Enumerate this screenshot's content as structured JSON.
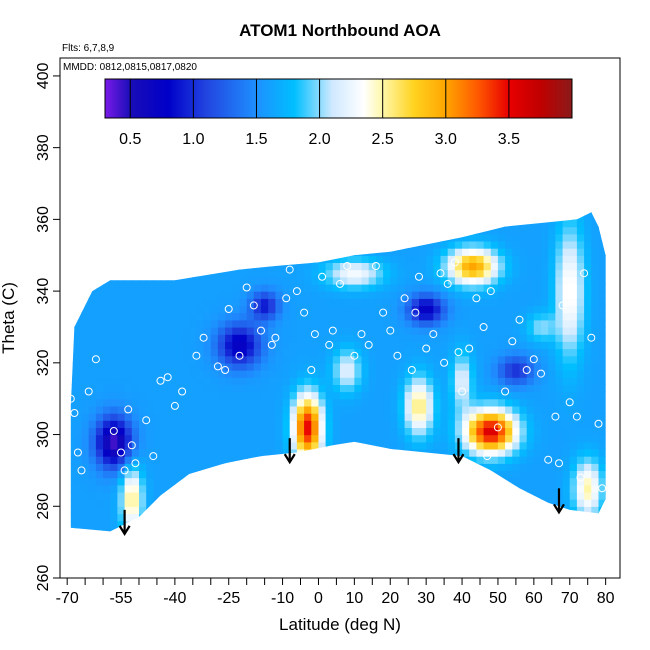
{
  "chart_data": {
    "type": "heatmap",
    "title": "ATOM1 Northbound AOA",
    "annotations": {
      "flights": "Flts: 6,7,8,9",
      "dates": "MMDD: 0812,0815,0817,0820"
    },
    "xlabel": "Latitude (deg N)",
    "ylabel": "Theta (C)",
    "xlim": [
      -72,
      84
    ],
    "ylim": [
      260,
      405
    ],
    "x_ticks": [
      -70,
      -55,
      -40,
      -25,
      -10,
      0,
      10,
      20,
      30,
      40,
      50,
      60,
      70,
      80
    ],
    "x_minor_ticks": [
      -65,
      -60,
      -50,
      -45,
      -35,
      -30,
      -20,
      -15,
      -5,
      5,
      15,
      25,
      35,
      45,
      55,
      65,
      75
    ],
    "y_ticks": [
      260,
      280,
      300,
      320,
      340,
      360,
      380,
      400
    ],
    "grid": false,
    "colorbar": {
      "placement": "top-inside",
      "range": [
        0.3,
        4.0
      ],
      "ticks": [
        0.5,
        1.0,
        1.5,
        2.0,
        2.5,
        3.0,
        3.5
      ],
      "stops": [
        {
          "v": 0.3,
          "c": "#7a1be8"
        },
        {
          "v": 0.5,
          "c": "#1a0db8"
        },
        {
          "v": 0.8,
          "c": "#0000c8"
        },
        {
          "v": 1.1,
          "c": "#2244e0"
        },
        {
          "v": 1.5,
          "c": "#1e90ff"
        },
        {
          "v": 1.8,
          "c": "#00bfff"
        },
        {
          "v": 2.1,
          "c": "#cfe9ff"
        },
        {
          "v": 2.35,
          "c": "#ffffff"
        },
        {
          "v": 2.5,
          "c": "#fff7a8"
        },
        {
          "v": 2.75,
          "c": "#ffd21f"
        },
        {
          "v": 3.0,
          "c": "#ffa500"
        },
        {
          "v": 3.25,
          "c": "#ff5a00"
        },
        {
          "v": 3.5,
          "c": "#e80000"
        },
        {
          "v": 3.75,
          "c": "#c00000"
        },
        {
          "v": 4.0,
          "c": "#8b1a1a"
        }
      ]
    },
    "field": {
      "base": 1.6,
      "features": [
        {
          "lat": -57,
          "th": 298,
          "rx": 5,
          "ry": 7,
          "amp": -1.2
        },
        {
          "lat": -52,
          "th": 282,
          "rx": 3,
          "ry": 9,
          "amp": 1.0
        },
        {
          "lat": -22,
          "th": 325,
          "rx": 6,
          "ry": 6,
          "amp": -0.9
        },
        {
          "lat": -15,
          "th": 336,
          "rx": 4,
          "ry": 4,
          "amp": -0.7
        },
        {
          "lat": -3,
          "th": 302,
          "rx": 4,
          "ry": 9,
          "amp": 1.9
        },
        {
          "lat": 10,
          "th": 345,
          "rx": 8,
          "ry": 4,
          "amp": 0.7
        },
        {
          "lat": 8,
          "th": 318,
          "rx": 4,
          "ry": 6,
          "amp": 0.6
        },
        {
          "lat": 28,
          "th": 308,
          "rx": 4,
          "ry": 8,
          "amp": 1.0
        },
        {
          "lat": 30,
          "th": 335,
          "rx": 5,
          "ry": 4,
          "amp": -0.9
        },
        {
          "lat": 43,
          "th": 347,
          "rx": 7,
          "ry": 5,
          "amp": 1.4
        },
        {
          "lat": 48,
          "th": 301,
          "rx": 7,
          "ry": 6,
          "amp": 2.0
        },
        {
          "lat": 40,
          "th": 315,
          "rx": 3,
          "ry": 8,
          "amp": 0.6
        },
        {
          "lat": 55,
          "th": 318,
          "rx": 5,
          "ry": 4,
          "amp": -0.6
        },
        {
          "lat": 70,
          "th": 340,
          "rx": 4,
          "ry": 18,
          "amp": 0.8
        },
        {
          "lat": 75,
          "th": 285,
          "rx": 4,
          "ry": 8,
          "amp": 0.9
        },
        {
          "lat": 62,
          "th": 330,
          "rx": 4,
          "ry": 4,
          "amp": 0.4
        }
      ]
    },
    "coverage_top": [
      [
        -69,
        308
      ],
      [
        -68,
        330
      ],
      [
        -63,
        340
      ],
      [
        -58,
        343
      ],
      [
        -40,
        343
      ],
      [
        -22,
        346
      ],
      [
        -12,
        347
      ],
      [
        0,
        348
      ],
      [
        10,
        350
      ],
      [
        20,
        351
      ],
      [
        30,
        353
      ],
      [
        40,
        355
      ],
      [
        52,
        358
      ],
      [
        62,
        359
      ],
      [
        72,
        360
      ],
      [
        76,
        362
      ],
      [
        78,
        358
      ],
      [
        80,
        350
      ]
    ],
    "coverage_bottom": [
      [
        -69,
        274
      ],
      [
        -58,
        273
      ],
      [
        -50,
        277
      ],
      [
        -44,
        283
      ],
      [
        -36,
        289
      ],
      [
        -26,
        292
      ],
      [
        -16,
        294
      ],
      [
        -6,
        295
      ],
      [
        4,
        297
      ],
      [
        10,
        298
      ],
      [
        20,
        296
      ],
      [
        30,
        295
      ],
      [
        40,
        294
      ],
      [
        48,
        290
      ],
      [
        56,
        285
      ],
      [
        64,
        281
      ],
      [
        70,
        279
      ],
      [
        78,
        278
      ],
      [
        80,
        282
      ]
    ],
    "points": [
      [
        -69,
        310
      ],
      [
        -68,
        306
      ],
      [
        -67,
        295
      ],
      [
        -66,
        290
      ],
      [
        -64,
        312
      ],
      [
        -62,
        321
      ],
      [
        -57,
        301
      ],
      [
        -55,
        295
      ],
      [
        -54,
        290
      ],
      [
        -53,
        307
      ],
      [
        -52,
        297
      ],
      [
        -51,
        292
      ],
      [
        -48,
        304
      ],
      [
        -46,
        294
      ],
      [
        -44,
        315
      ],
      [
        -42,
        316
      ],
      [
        -40,
        308
      ],
      [
        -38,
        312
      ],
      [
        -34,
        322
      ],
      [
        -32,
        327
      ],
      [
        -28,
        319
      ],
      [
        -26,
        318
      ],
      [
        -25,
        335
      ],
      [
        -22,
        322
      ],
      [
        -20,
        341
      ],
      [
        -18,
        336
      ],
      [
        -16,
        329
      ],
      [
        -13,
        325
      ],
      [
        -12,
        327
      ],
      [
        -9,
        338
      ],
      [
        -8,
        346
      ],
      [
        -6,
        340
      ],
      [
        -4,
        334
      ],
      [
        -2,
        318
      ],
      [
        -1,
        328
      ],
      [
        1,
        344
      ],
      [
        3,
        325
      ],
      [
        4,
        329
      ],
      [
        6,
        342
      ],
      [
        8,
        347
      ],
      [
        10,
        322
      ],
      [
        12,
        328
      ],
      [
        14,
        325
      ],
      [
        16,
        347
      ],
      [
        18,
        334
      ],
      [
        20,
        329
      ],
      [
        22,
        322
      ],
      [
        24,
        338
      ],
      [
        26,
        318
      ],
      [
        27,
        334
      ],
      [
        28,
        344
      ],
      [
        30,
        324
      ],
      [
        32,
        328
      ],
      [
        34,
        345
      ],
      [
        35,
        320
      ],
      [
        36,
        342
      ],
      [
        38,
        348
      ],
      [
        39,
        323
      ],
      [
        40,
        312
      ],
      [
        42,
        324
      ],
      [
        44,
        338
      ],
      [
        46,
        330
      ],
      [
        47,
        294
      ],
      [
        48,
        340
      ],
      [
        50,
        302
      ],
      [
        52,
        312
      ],
      [
        54,
        326
      ],
      [
        56,
        332
      ],
      [
        58,
        318
      ],
      [
        60,
        321
      ],
      [
        62,
        317
      ],
      [
        64,
        293
      ],
      [
        66,
        305
      ],
      [
        67,
        292
      ],
      [
        68,
        336
      ],
      [
        70,
        309
      ],
      [
        72,
        305
      ],
      [
        73,
        288
      ],
      [
        74,
        345
      ],
      [
        76,
        327
      ],
      [
        78,
        303
      ],
      [
        79,
        285
      ]
    ],
    "arrows": [
      {
        "lat": -54,
        "theta": 279
      },
      {
        "lat": -8,
        "theta": 299
      },
      {
        "lat": 39,
        "theta": 299
      },
      {
        "lat": 67,
        "theta": 285
      }
    ]
  }
}
